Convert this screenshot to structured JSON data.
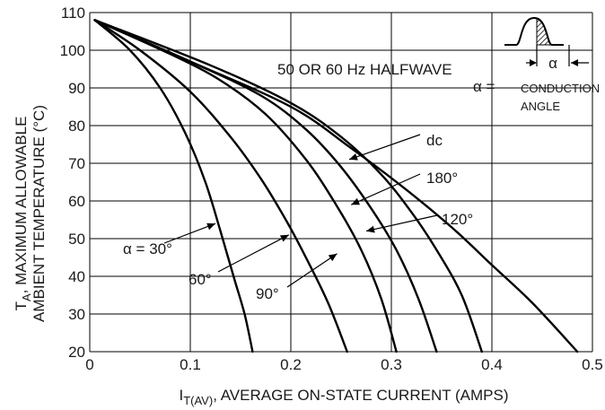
{
  "chart_data": {
    "type": "line",
    "title": "50 OR 60 Hz HALFWAVE",
    "xlabel_main": "I",
    "xlabel_sub": "T(AV)",
    "xlabel_rest": ", AVERAGE ON-STATE CURRENT (AMPS)",
    "ylabel_line1_main": "T",
    "ylabel_line1_sub": "A",
    "ylabel_line1_rest": ", MAXIMUM ALLOWABLE",
    "ylabel_line2": "AMBIENT TEMPERATURE (°C)",
    "xlim": [
      0,
      0.5
    ],
    "ylim": [
      20,
      110
    ],
    "x_ticks": [
      0,
      0.1,
      0.2,
      0.3,
      0.4,
      0.5
    ],
    "x_tick_labels": [
      "0",
      "0.1",
      "0.2",
      "0.3",
      "0.4",
      "0.5"
    ],
    "y_ticks": [
      20,
      30,
      40,
      50,
      60,
      70,
      80,
      90,
      100,
      110
    ],
    "y_tick_labels": [
      "20",
      "30",
      "40",
      "50",
      "60",
      "70",
      "80",
      "90",
      "100",
      "110"
    ],
    "grid": true,
    "series": [
      {
        "name": "α = 30°",
        "points": [
          [
            0.005,
            108
          ],
          [
            0.04,
            100
          ],
          [
            0.07,
            90
          ],
          [
            0.095,
            78
          ],
          [
            0.115,
            65
          ],
          [
            0.13,
            52
          ],
          [
            0.143,
            40
          ],
          [
            0.154,
            30
          ],
          [
            0.162,
            20
          ]
        ]
      },
      {
        "name": "60°",
        "points": [
          [
            0.005,
            108
          ],
          [
            0.05,
            100
          ],
          [
            0.1,
            89
          ],
          [
            0.14,
            77
          ],
          [
            0.17,
            66
          ],
          [
            0.195,
            55
          ],
          [
            0.215,
            45
          ],
          [
            0.237,
            33
          ],
          [
            0.256,
            20
          ]
        ]
      },
      {
        "name": "90°",
        "points": [
          [
            0.005,
            108
          ],
          [
            0.08,
            99
          ],
          [
            0.13,
            92
          ],
          [
            0.175,
            83
          ],
          [
            0.215,
            71
          ],
          [
            0.245,
            59
          ],
          [
            0.27,
            47
          ],
          [
            0.29,
            34
          ],
          [
            0.305,
            20
          ]
        ]
      },
      {
        "name": "120°",
        "points": [
          [
            0.005,
            108
          ],
          [
            0.1,
            97
          ],
          [
            0.17,
            88
          ],
          [
            0.215,
            79
          ],
          [
            0.25,
            69
          ],
          [
            0.28,
            58
          ],
          [
            0.305,
            47
          ],
          [
            0.327,
            34
          ],
          [
            0.345,
            20
          ]
        ]
      },
      {
        "name": "180°",
        "points": [
          [
            0.005,
            108
          ],
          [
            0.12,
            96
          ],
          [
            0.2,
            86
          ],
          [
            0.25,
            77
          ],
          [
            0.29,
            67
          ],
          [
            0.32,
            57
          ],
          [
            0.345,
            47
          ],
          [
            0.37,
            35
          ],
          [
            0.39,
            20
          ]
        ]
      },
      {
        "name": "dc",
        "points": [
          [
            0.005,
            108
          ],
          [
            0.1,
            97
          ],
          [
            0.2,
            85
          ],
          [
            0.26,
            74
          ],
          [
            0.31,
            64
          ],
          [
            0.36,
            53
          ],
          [
            0.4,
            43
          ],
          [
            0.44,
            33
          ],
          [
            0.485,
            20
          ]
        ]
      }
    ],
    "annotations": [
      {
        "text": "α = 30°",
        "point_at": [
          0.125,
          54
        ]
      },
      {
        "text": "60°",
        "point_at": [
          0.198,
          51
        ]
      },
      {
        "text": "90°",
        "point_at": [
          0.246,
          46
        ]
      },
      {
        "text": "120°",
        "point_at": [
          0.275,
          52
        ]
      },
      {
        "text": "180°",
        "point_at": [
          0.26,
          59
        ]
      },
      {
        "text": "dc",
        "point_at": [
          0.258,
          71
        ]
      }
    ],
    "legend_note": {
      "symbol": "α",
      "equals": "α =",
      "line1": "CONDUCTION",
      "line2": "ANGLE"
    }
  }
}
